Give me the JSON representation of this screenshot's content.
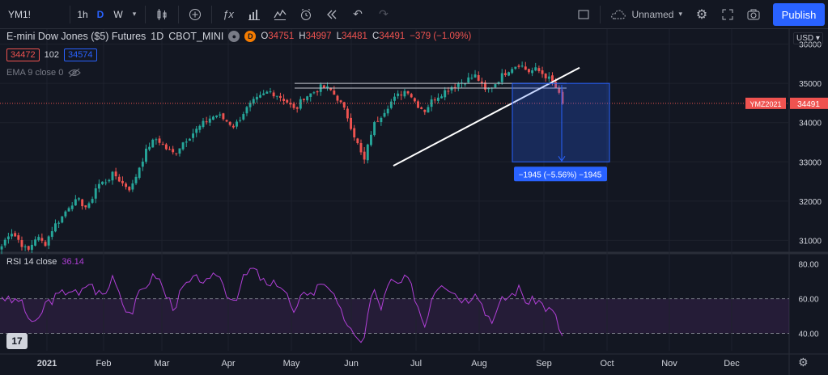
{
  "toolbar": {
    "symbol": "YM1!",
    "intervals": [
      {
        "label": "1h",
        "active": false
      },
      {
        "label": "D",
        "active": true
      },
      {
        "label": "W",
        "active": false
      }
    ],
    "icons": [
      "chevron-down-icon",
      "candles-icon",
      "plus-circle-icon",
      "fx-icon",
      "templates-icon",
      "alert-clock-icon",
      "replay-icon",
      "undo-icon",
      "redo-icon",
      "screen-icon",
      "cloud-icon",
      "gear-icon",
      "fullscreen-icon",
      "camera-icon"
    ],
    "layout_name": "Unnamed",
    "publish_label": "Publish"
  },
  "legend": {
    "title": "E-mini Dow Jones ($5) Futures",
    "interval": "1D",
    "exchange": "CBOT_MINI",
    "o_label": "O",
    "o": "34751",
    "h_label": "H",
    "h": "34997",
    "l_label": "L",
    "l": "34481",
    "c_label": "C",
    "c": "34491",
    "change": "−379 (−1.09%)",
    "bid": "34472",
    "spread": "102",
    "ask": "34574",
    "pill_d": "D"
  },
  "ema": {
    "label": "EMA 9 close 0"
  },
  "rsi": {
    "label": "RSI 14 close",
    "value": "36.14"
  },
  "currency": "USD",
  "price_label": {
    "symbol": "YMZ2021",
    "price": "34491"
  },
  "measure": {
    "text": "−1945 (−5.56%) −1945"
  },
  "logo": "17",
  "colors": {
    "up": "#26a69a",
    "down": "#ef5350",
    "accent": "#2962ff",
    "rsi": "#b03fd6"
  },
  "chart_data": {
    "type": "candlestick",
    "y_ticks": [
      31000,
      32000,
      33000,
      34000,
      35000,
      36000
    ],
    "rsi_ticks": [
      40,
      60,
      80
    ],
    "rsi_tick_labels": [
      "40.00",
      "60.00",
      "80.00"
    ],
    "price_tick_labels": [
      "31000",
      "32000",
      "33000",
      "34000",
      "35000",
      "36000"
    ],
    "x_labels": [
      "2021",
      "Feb",
      "Mar",
      "Apr",
      "May",
      "Jun",
      "Jul",
      "Aug",
      "Sep",
      "Oct",
      "Nov",
      "Dec"
    ],
    "ylim": [
      30700,
      36300
    ],
    "rsi_range": [
      30,
      85
    ],
    "last_price": 34491,
    "candle_path": [
      30850,
      31250,
      31000,
      30700,
      31100,
      30900,
      31350,
      31600,
      31950,
      32000,
      31800,
      32400,
      32500,
      32700,
      32450,
      32300,
      32900,
      33400,
      33600,
      33350,
      33200,
      33500,
      33700,
      33900,
      34100,
      34200,
      34050,
      33900,
      34250,
      34500,
      34650,
      34800,
      34700,
      34550,
      34300,
      34650,
      34750,
      34900,
      34850,
      34600,
      34200,
      33600,
      33000,
      33900,
      34200,
      34500,
      34700,
      34850,
      34500,
      34300,
      34600,
      34750,
      34900,
      35000,
      35100,
      35200,
      34800,
      34950,
      35200,
      35400,
      35500,
      35300,
      35350,
      35200,
      35000,
      34500
    ],
    "rsi_path": [
      62,
      58,
      60,
      50,
      44,
      57,
      60,
      63,
      66,
      61,
      70,
      64,
      62,
      75,
      58,
      51,
      63,
      70,
      74,
      62,
      55,
      66,
      70,
      72,
      68,
      76,
      64,
      59,
      71,
      78,
      72,
      66,
      70,
      63,
      49,
      66,
      62,
      70,
      68,
      54,
      47,
      35,
      38,
      66,
      55,
      70,
      68,
      72,
      60,
      44,
      64,
      70,
      66,
      61,
      59,
      66,
      52,
      48,
      59,
      62,
      66,
      57,
      60,
      55,
      52,
      38
    ],
    "levels": [
      35000,
      34880
    ],
    "trendline": [
      [
        32900,
        0
      ],
      [
        35400,
        1
      ]
    ],
    "measure_range": [
      35000,
      33000
    ]
  }
}
